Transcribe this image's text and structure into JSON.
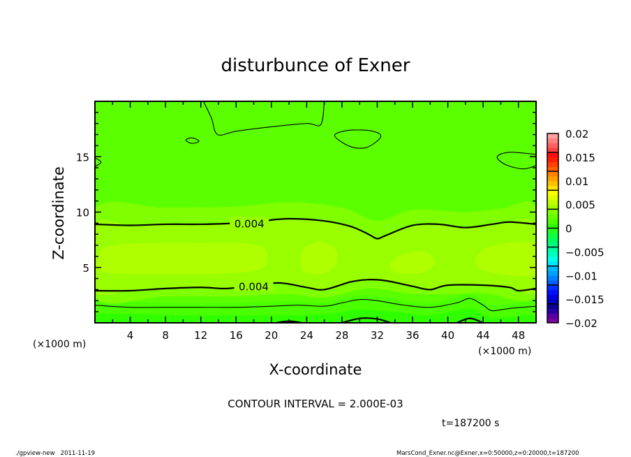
{
  "chart_data": {
    "type": "contour",
    "title": "disturbunce of Exner",
    "xlabel": "X-coordinate",
    "ylabel": "Z-coordinate",
    "x_unit_left": "(×1000 m)",
    "x_unit_right": "(×1000 m)",
    "xlim": [
      0,
      50
    ],
    "ylim": [
      0,
      20
    ],
    "x_ticks": [
      4,
      8,
      12,
      16,
      20,
      24,
      28,
      32,
      36,
      40,
      44,
      48
    ],
    "y_ticks": [
      5,
      10,
      15
    ],
    "contour_interval_text": "CONTOUR INTERVAL = 2.000E-03",
    "time_text": "t=187200 s",
    "colorbar": {
      "range": [
        -0.02,
        0.02
      ],
      "step": 0.001,
      "tick_labels": [
        "0.02",
        "0.015",
        "0.01",
        "0.005",
        "0",
        "-0.005",
        "-0.01",
        "-0.015",
        "-0.02"
      ],
      "tick_values": [
        0.02,
        0.015,
        0.01,
        0.005,
        0,
        -0.005,
        -0.01,
        -0.015,
        -0.02
      ],
      "colors": [
        "#7800a0",
        "#5800a0",
        "#2800a0",
        "#0a0096",
        "#0000c0",
        "#0000e0",
        "#0010ff",
        "#0030ff",
        "#0060ff",
        "#0080ff",
        "#00a0ff",
        "#00b8ff",
        "#00e8ff",
        "#00ffe8",
        "#00ffc0",
        "#00ffa0",
        "#00ff80",
        "#00ff60",
        "#10ff40",
        "#20ff20",
        "#30ff00",
        "#50ff00",
        "#68ff00",
        "#80ff00",
        "#a0ff00",
        "#c0ff00",
        "#e0ff00",
        "#ffff00",
        "#ffe000",
        "#ffc000",
        "#ffa000",
        "#ff8000",
        "#ff6000",
        "#ff4000",
        "#ff2000",
        "#ff1010",
        "#ff4040",
        "#ff6060",
        "#ff8080",
        "#ffa0a0"
      ]
    },
    "background_fill": "#5cff00",
    "filled_regions": [
      {
        "range": [
          0.001,
          0.002
        ],
        "color": "#4cff00",
        "points": [
          [
            0,
            0
          ],
          [
            0,
            1.9
          ],
          [
            8,
            1.8
          ],
          [
            16,
            1.8
          ],
          [
            23,
            2.0
          ],
          [
            26,
            1.9
          ],
          [
            30,
            2.5
          ],
          [
            33,
            2.3
          ],
          [
            38,
            1.8
          ],
          [
            42.5,
            2.6
          ],
          [
            45,
            1.6
          ],
          [
            50,
            1.9
          ],
          [
            50,
            0
          ]
        ]
      },
      {
        "range": [
          0.0,
          0.001
        ],
        "color": "#30ff00",
        "points": [
          [
            0,
            0
          ],
          [
            0,
            0.8
          ],
          [
            10,
            0.7
          ],
          [
            20,
            0.7
          ],
          [
            26,
            0.8
          ],
          [
            30,
            1.2
          ],
          [
            34,
            1.0
          ],
          [
            38,
            0.7
          ],
          [
            42.5,
            1.3
          ],
          [
            45,
            0.5
          ],
          [
            50,
            0.7
          ],
          [
            50,
            0
          ]
        ]
      },
      {
        "range": [
          0.003,
          0.004
        ],
        "color": "#80ff00",
        "points": [
          [
            0,
            2.3
          ],
          [
            8,
            2.4
          ],
          [
            16,
            2.4
          ],
          [
            22,
            2.6
          ],
          [
            26,
            2.3
          ],
          [
            31,
            3.1
          ],
          [
            36,
            2.6
          ],
          [
            40,
            2.6
          ],
          [
            44,
            2.7
          ],
          [
            50,
            2.5
          ],
          [
            50,
            10.4
          ],
          [
            46,
            10.3
          ],
          [
            42,
            10.0
          ],
          [
            36,
            10.2
          ],
          [
            32,
            9.2
          ],
          [
            28,
            10.4
          ],
          [
            22,
            10.9
          ],
          [
            16,
            10.5
          ],
          [
            8,
            10.4
          ],
          [
            0,
            10.3
          ]
        ]
      },
      {
        "range": [
          0.004,
          0.005
        ],
        "color": "#99ff00",
        "points": [
          [
            0,
            2.9
          ],
          [
            4,
            2.9
          ],
          [
            8,
            3.1
          ],
          [
            12,
            3.2
          ],
          [
            15,
            3.1
          ],
          [
            18,
            3.4
          ],
          [
            21,
            3.6
          ],
          [
            24,
            3.2
          ],
          [
            26,
            3.0
          ],
          [
            29,
            3.7
          ],
          [
            31,
            3.9
          ],
          [
            33,
            3.8
          ],
          [
            36,
            3.3
          ],
          [
            38,
            3.0
          ],
          [
            40,
            3.4
          ],
          [
            44,
            3.4
          ],
          [
            47,
            3.2
          ],
          [
            48,
            2.9
          ],
          [
            50,
            3.1
          ],
          [
            50,
            8.9
          ],
          [
            47,
            9.1
          ],
          [
            45,
            8.9
          ],
          [
            42,
            8.6
          ],
          [
            39,
            8.9
          ],
          [
            36,
            8.8
          ],
          [
            33,
            7.9
          ],
          [
            32,
            7.6
          ],
          [
            31,
            8.0
          ],
          [
            29,
            8.7
          ],
          [
            26,
            9.2
          ],
          [
            22,
            9.4
          ],
          [
            19,
            9.2
          ],
          [
            16,
            9.0
          ],
          [
            12,
            8.9
          ],
          [
            8,
            8.9
          ],
          [
            4,
            8.8
          ],
          [
            0,
            8.9
          ]
        ]
      },
      {
        "range": [
          0.005,
          0.006
        ],
        "color": "#b0ff00",
        "points": [
          [
            1,
            4.6
          ],
          [
            8,
            4.4
          ],
          [
            16,
            4.5
          ],
          [
            19,
            5.0
          ],
          [
            19.5,
            6.2
          ],
          [
            18,
            7.1
          ],
          [
            10,
            7.2
          ],
          [
            2,
            7.0
          ],
          [
            0.5,
            6.0
          ]
        ]
      },
      {
        "range": [
          0.005,
          0.006
        ],
        "color": "#b0ff00",
        "points": [
          [
            23.5,
            4.8
          ],
          [
            25.5,
            4.4
          ],
          [
            27.3,
            5.2
          ],
          [
            27.3,
            6.6
          ],
          [
            25.5,
            7.3
          ],
          [
            23.6,
            6.6
          ]
        ]
      },
      {
        "range": [
          0.005,
          0.006
        ],
        "color": "#b0ff00",
        "points": [
          [
            34,
            4.6
          ],
          [
            37,
            4.5
          ],
          [
            38.5,
            5.4
          ],
          [
            37.5,
            6.4
          ],
          [
            35,
            6.2
          ],
          [
            33.5,
            5.4
          ]
        ]
      },
      {
        "range": [
          0.005,
          0.006
        ],
        "color": "#b0ff00",
        "points": [
          [
            43.5,
            5.0
          ],
          [
            46,
            4.4
          ],
          [
            50,
            4.4
          ],
          [
            50,
            7.0
          ],
          [
            48,
            7.3
          ],
          [
            44.5,
            6.8
          ],
          [
            43.2,
            5.8
          ]
        ]
      }
    ],
    "contour_lines": [
      {
        "level": 0.004,
        "label": "0.004",
        "bold": true,
        "label_at": [
          17.5,
          9.0
        ],
        "points": [
          [
            0,
            8.9
          ],
          [
            4,
            8.8
          ],
          [
            8,
            8.9
          ],
          [
            12,
            8.9
          ],
          [
            16,
            9.0
          ],
          [
            19,
            9.2
          ],
          [
            22,
            9.4
          ],
          [
            26,
            9.2
          ],
          [
            29,
            8.7
          ],
          [
            31,
            8.0
          ],
          [
            32,
            7.6
          ],
          [
            33,
            7.9
          ],
          [
            36,
            8.8
          ],
          [
            39,
            8.9
          ],
          [
            42,
            8.6
          ],
          [
            45,
            8.9
          ],
          [
            47,
            9.1
          ],
          [
            50,
            8.9
          ]
        ]
      },
      {
        "level": 0.004,
        "label": "0.004",
        "bold": true,
        "label_at": [
          18,
          3.3
        ],
        "points": [
          [
            0,
            2.9
          ],
          [
            4,
            2.9
          ],
          [
            8,
            3.1
          ],
          [
            12,
            3.2
          ],
          [
            15,
            3.1
          ],
          [
            18,
            3.4
          ],
          [
            21,
            3.6
          ],
          [
            24,
            3.2
          ],
          [
            26,
            3.0
          ],
          [
            29,
            3.7
          ],
          [
            31,
            3.9
          ],
          [
            33,
            3.8
          ],
          [
            36,
            3.3
          ],
          [
            38,
            3.0
          ],
          [
            40,
            3.4
          ],
          [
            44,
            3.4
          ],
          [
            47,
            3.2
          ],
          [
            48,
            2.9
          ],
          [
            50,
            3.1
          ]
        ]
      },
      {
        "level": 0.002,
        "bold": false,
        "points": [
          [
            0,
            1.6
          ],
          [
            4,
            1.4
          ],
          [
            8,
            1.4
          ],
          [
            12,
            1.4
          ],
          [
            16,
            1.4
          ],
          [
            20,
            1.5
          ],
          [
            23,
            1.6
          ],
          [
            26,
            1.5
          ],
          [
            28,
            1.8
          ],
          [
            30,
            2.1
          ],
          [
            32,
            2.0
          ],
          [
            35,
            1.6
          ],
          [
            38,
            1.4
          ],
          [
            41,
            1.8
          ],
          [
            42.5,
            2.2
          ],
          [
            44,
            1.6
          ],
          [
            45,
            1.1
          ],
          [
            47,
            1.3
          ],
          [
            50,
            1.5
          ]
        ]
      },
      {
        "level": 0.0,
        "bold": true,
        "points": [
          [
            20.5,
            0
          ],
          [
            22,
            0.15
          ],
          [
            23.5,
            0
          ]
        ]
      },
      {
        "level": 0.0,
        "bold": true,
        "points": [
          [
            28,
            0
          ],
          [
            30,
            0.4
          ],
          [
            32,
            0.35
          ],
          [
            33.5,
            0
          ]
        ]
      },
      {
        "level": 0.0,
        "bold": true,
        "points": [
          [
            41,
            0
          ],
          [
            42.5,
            0.4
          ],
          [
            44,
            0
          ]
        ]
      },
      {
        "level": 0.002,
        "bold": false,
        "points": [
          [
            12.3,
            20
          ],
          [
            13.2,
            18.5
          ],
          [
            13.9,
            17.0
          ],
          [
            16,
            17.3
          ],
          [
            20,
            17.7
          ],
          [
            24,
            18.0
          ],
          [
            25.6,
            17.9
          ],
          [
            26,
            20
          ]
        ]
      },
      {
        "level": 0.002,
        "bold": false,
        "closed": true,
        "points": [
          [
            27.2,
            17.0
          ],
          [
            29,
            17.4
          ],
          [
            31.5,
            17.3
          ],
          [
            32.4,
            16.8
          ],
          [
            31,
            15.9
          ],
          [
            29.5,
            15.8
          ],
          [
            28,
            16.3
          ]
        ]
      },
      {
        "level": 0.002,
        "bold": false,
        "closed": true,
        "points": [
          [
            10.3,
            16.5
          ],
          [
            11,
            16.7
          ],
          [
            11.8,
            16.4
          ],
          [
            11,
            16.2
          ]
        ]
      },
      {
        "level": 0.002,
        "bold": false,
        "points": [
          [
            50,
            15.2
          ],
          [
            47,
            15.4
          ],
          [
            45.6,
            15.0
          ],
          [
            46.5,
            14.3
          ],
          [
            48.5,
            13.9
          ],
          [
            50,
            14.2
          ]
        ]
      },
      {
        "level": 0.002,
        "bold": false,
        "points": [
          [
            0,
            14.9
          ],
          [
            0.7,
            14.5
          ],
          [
            0,
            14.1
          ]
        ]
      }
    ]
  },
  "footer": {
    "left": "./gpview-new   2011-11-19",
    "right": "MarsCond_Exner.nc@Exner,x=0:50000,z=0:20000,t=187200"
  }
}
